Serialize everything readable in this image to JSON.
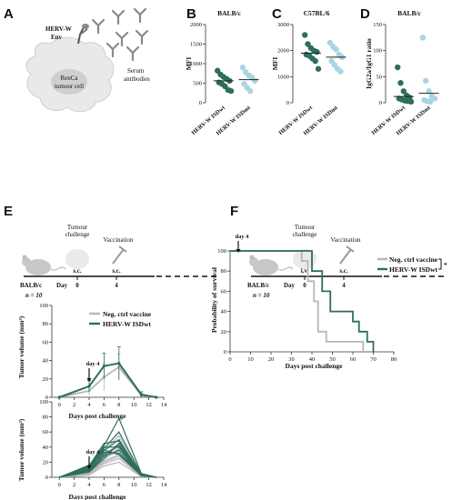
{
  "panels": {
    "a": "A",
    "b": "B",
    "c": "C",
    "d": "D",
    "e": "E",
    "f": "F"
  },
  "schematic": {
    "env_label_line1": "HERV-W",
    "env_label_line2": "Env",
    "serum_line1": "Serum",
    "serum_line2": "antibodies",
    "cell_line1": "RenCa",
    "cell_line2": "tumour cell"
  },
  "timeline_e": {
    "mouse_label": "BALB/c",
    "n_label": "n = 10",
    "challenge_line1": "Tumour",
    "challenge_line2": "challenge",
    "vaccination": "Vaccination",
    "route_challenge": "s.c.",
    "route_vaccine": "s.c.",
    "day_label": "Day",
    "day0": "0",
    "day4": "4"
  },
  "timeline_f": {
    "mouse_label": "BALB/c",
    "n_label": "n = 10",
    "challenge_line1": "Tumour",
    "challenge_line2": "challenge",
    "vaccination": "Vaccination",
    "route_challenge": "i.v.",
    "route_vaccine": "s.c.",
    "day_label": "Day",
    "day0": "0",
    "day4": "4"
  },
  "chart_data": [
    {
      "id": "B",
      "type": "scatter",
      "title": "BALB/c",
      "ylabel": "MFI",
      "ylim": [
        0,
        2000
      ],
      "yticks": [
        0,
        500,
        1000,
        1500,
        2000
      ],
      "categories": [
        "HERV-W ISDwt",
        "HERV-W ISDmt"
      ],
      "colors": [
        "#2d6e5e",
        "#a9d4e4"
      ],
      "series": [
        {
          "values": [
            820,
            720,
            660,
            610,
            560,
            520,
            480,
            420,
            330,
            300
          ],
          "mean": 560
        },
        {
          "values": [
            900,
            780,
            700,
            650,
            560,
            480,
            380,
            300
          ],
          "mean": 590
        }
      ]
    },
    {
      "id": "C",
      "type": "scatter",
      "title": "C57BL/6",
      "ylabel": "MFI",
      "ylim": [
        0,
        3000
      ],
      "yticks": [
        0,
        1000,
        2000,
        3000
      ],
      "categories": [
        "HERV-W ISDwt",
        "HERV-W ISDmt"
      ],
      "colors": [
        "#2d6e5e",
        "#a9d4e4"
      ],
      "series": [
        {
          "values": [
            2600,
            2250,
            2100,
            2000,
            1950,
            1850,
            1800,
            1700,
            1600,
            1300
          ],
          "mean": 1900
        },
        {
          "values": [
            2300,
            2150,
            2050,
            1850,
            1750,
            1600,
            1450,
            1300,
            1200
          ],
          "mean": 1750
        }
      ]
    },
    {
      "id": "D",
      "type": "scatter",
      "title": "BALB/c",
      "ylabel": "IgG2a/IgG1 ratio",
      "ylim": [
        0,
        150
      ],
      "yticks": [
        0,
        50,
        100,
        150
      ],
      "categories": [
        "HERV-W ISDwt",
        "HERV-W ISDmt"
      ],
      "colors": [
        "#2d6e5e",
        "#a9d4e4"
      ],
      "series": [
        {
          "values": [
            68,
            38,
            22,
            14,
            10,
            8,
            6,
            4,
            3,
            2
          ],
          "mean": 12
        },
        {
          "values": [
            125,
            42,
            22,
            12,
            8,
            5,
            3,
            2
          ],
          "mean": 18
        }
      ]
    },
    {
      "id": "E-mean",
      "type": "line",
      "ylabel": "Tumor volume (mm³)",
      "xlabel": "Days post challenge",
      "x": [
        0,
        4,
        6,
        8,
        11,
        13
      ],
      "xticks": [
        0,
        2,
        4,
        6,
        8,
        10,
        12,
        14
      ],
      "ylim": [
        0,
        100
      ],
      "yticks": [
        0,
        20,
        40,
        60,
        80,
        100
      ],
      "xlim": [
        -1,
        14
      ],
      "annotation": "day 4",
      "annotation_x": 4,
      "series": [
        {
          "name": "Neg. ctrl vaccine",
          "color": "#b7b7b7",
          "values": [
            0,
            7,
            22,
            33,
            2,
            0
          ],
          "err": [
            0,
            5,
            15,
            14,
            2,
            0
          ]
        },
        {
          "name": "HERV-W ISDwt",
          "color": "#2d6e5e",
          "values": [
            0,
            12,
            34,
            37,
            3,
            0
          ],
          "err": [
            0,
            6,
            14,
            18,
            3,
            0
          ]
        }
      ]
    },
    {
      "id": "E-individual",
      "type": "line",
      "ylabel": "Tumor volume (mm³)",
      "xlabel": "Days post challenge",
      "x": [
        0,
        4,
        6,
        8,
        11,
        13
      ],
      "xticks": [
        0,
        2,
        4,
        6,
        8,
        10,
        12,
        14
      ],
      "ylim": [
        0,
        100
      ],
      "yticks": [
        0,
        20,
        40,
        60,
        80,
        100
      ],
      "xlim": [
        -1,
        14
      ],
      "annotation": "day 4",
      "annotation_x": 4,
      "colors": [
        "#b7b7b7",
        "#2d6e5e"
      ],
      "series": [
        {
          "group": 0,
          "values": [
            0,
            5,
            20,
            28,
            2,
            0
          ]
        },
        {
          "group": 0,
          "values": [
            0,
            8,
            25,
            35,
            3,
            0
          ]
        },
        {
          "group": 0,
          "values": [
            0,
            10,
            30,
            40,
            3,
            0
          ]
        },
        {
          "group": 0,
          "values": [
            0,
            4,
            18,
            25,
            1,
            0
          ]
        },
        {
          "group": 0,
          "values": [
            0,
            9,
            28,
            45,
            2,
            0
          ]
        },
        {
          "group": 0,
          "values": [
            0,
            12,
            35,
            55,
            4,
            0
          ]
        },
        {
          "group": 0,
          "values": [
            0,
            6,
            22,
            30,
            2,
            0
          ]
        },
        {
          "group": 0,
          "values": [
            0,
            3,
            15,
            20,
            1,
            0
          ]
        },
        {
          "group": 0,
          "values": [
            0,
            7,
            24,
            38,
            3,
            0
          ]
        },
        {
          "group": 0,
          "values": [
            0,
            11,
            32,
            42,
            2,
            0
          ]
        },
        {
          "group": 1,
          "values": [
            0,
            14,
            42,
            78,
            5,
            0
          ]
        },
        {
          "group": 1,
          "values": [
            0,
            12,
            38,
            60,
            4,
            0
          ]
        },
        {
          "group": 1,
          "values": [
            0,
            10,
            35,
            50,
            3,
            0
          ]
        },
        {
          "group": 1,
          "values": [
            0,
            15,
            45,
            48,
            4,
            0
          ]
        },
        {
          "group": 1,
          "values": [
            0,
            9,
            30,
            42,
            3,
            0
          ]
        },
        {
          "group": 1,
          "values": [
            0,
            13,
            40,
            40,
            2,
            0
          ]
        },
        {
          "group": 1,
          "values": [
            0,
            8,
            28,
            36,
            2,
            0
          ]
        },
        {
          "group": 1,
          "values": [
            0,
            11,
            33,
            32,
            3,
            0
          ]
        },
        {
          "group": 1,
          "values": [
            0,
            16,
            36,
            30,
            2,
            0
          ]
        },
        {
          "group": 1,
          "values": [
            0,
            7,
            25,
            45,
            3,
            0
          ]
        }
      ]
    },
    {
      "id": "F",
      "type": "line",
      "ylabel": "Probability of survival",
      "xlabel": "Days post challenge",
      "xlim": [
        0,
        80
      ],
      "xticks": [
        0,
        10,
        20,
        30,
        40,
        50,
        60,
        70,
        80
      ],
      "ylim": [
        0,
        100
      ],
      "yticks": [
        0,
        20,
        40,
        60,
        80,
        100
      ],
      "annotation": "day 4",
      "annotation_x": 4,
      "significance": "*",
      "series": [
        {
          "name": "Neg. ctrl vaccine",
          "color": "#b7b7b7",
          "steps": [
            [
              0,
              100
            ],
            [
              35,
              100
            ],
            [
              35,
              90
            ],
            [
              38,
              90
            ],
            [
              38,
              70
            ],
            [
              41,
              70
            ],
            [
              41,
              50
            ],
            [
              43,
              50
            ],
            [
              43,
              20
            ],
            [
              47,
              20
            ],
            [
              47,
              10
            ],
            [
              65,
              10
            ],
            [
              65,
              0
            ]
          ]
        },
        {
          "name": "HERV-W ISDwt",
          "color": "#2d6e5e",
          "steps": [
            [
              0,
              100
            ],
            [
              40,
              100
            ],
            [
              40,
              80
            ],
            [
              45,
              80
            ],
            [
              45,
              60
            ],
            [
              49,
              60
            ],
            [
              49,
              40
            ],
            [
              60,
              40
            ],
            [
              60,
              30
            ],
            [
              63,
              30
            ],
            [
              63,
              20
            ],
            [
              67,
              20
            ],
            [
              67,
              10
            ],
            [
              70,
              10
            ],
            [
              70,
              0
            ]
          ]
        }
      ]
    }
  ]
}
